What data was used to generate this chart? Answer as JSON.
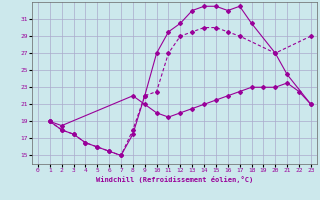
{
  "xlabel": "Windchill (Refroidissement éolien,°C)",
  "background_color": "#cce8ec",
  "grid_color": "#aaaacc",
  "line_color": "#990099",
  "xlim": [
    -0.5,
    23.5
  ],
  "ylim": [
    14.0,
    33.0
  ],
  "xticks": [
    0,
    1,
    2,
    3,
    4,
    5,
    6,
    7,
    8,
    9,
    10,
    11,
    12,
    13,
    14,
    15,
    16,
    17,
    18,
    19,
    20,
    21,
    22,
    23
  ],
  "yticks": [
    15,
    17,
    19,
    21,
    23,
    25,
    27,
    29,
    31
  ],
  "line1_x": [
    1,
    2,
    3,
    4,
    5,
    6,
    7,
    8,
    9,
    10,
    11,
    12,
    13,
    14,
    15,
    16,
    17,
    18,
    20,
    21,
    23
  ],
  "line1_y": [
    19,
    18,
    17.5,
    16.5,
    16,
    15.5,
    15,
    17.5,
    22,
    27,
    29.5,
    30.5,
    32,
    32.5,
    32.5,
    32,
    32.5,
    30.5,
    27,
    24.5,
    21
  ],
  "line2_x": [
    1,
    2,
    3,
    4,
    5,
    6,
    7,
    8,
    9,
    10,
    11,
    12,
    13,
    14,
    15,
    16,
    17,
    20,
    23
  ],
  "line2_y": [
    19,
    18,
    17.5,
    16.5,
    16,
    15.5,
    15,
    18,
    22,
    22.5,
    27,
    29,
    29.5,
    30,
    30,
    29.5,
    29,
    27,
    29
  ],
  "line3_x": [
    1,
    2,
    8,
    9,
    10,
    11,
    12,
    13,
    14,
    15,
    16,
    17,
    18,
    19,
    20,
    21,
    22,
    23
  ],
  "line3_y": [
    19,
    18.5,
    22,
    21,
    20,
    19.5,
    20,
    20.5,
    21,
    21.5,
    22,
    22.5,
    23,
    23,
    23,
    23.5,
    22.5,
    21
  ]
}
